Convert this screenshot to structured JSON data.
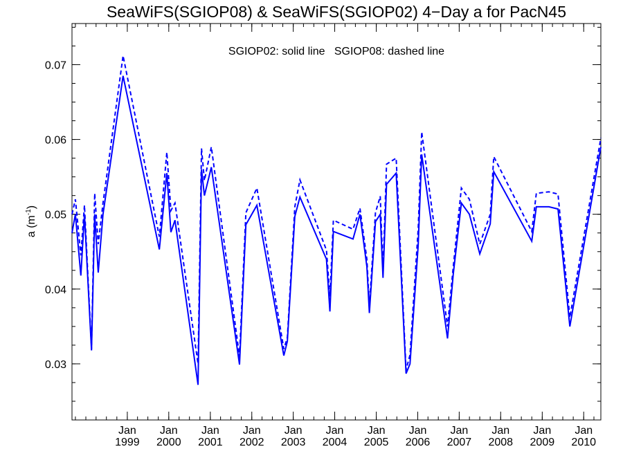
{
  "chart_data": {
    "type": "line",
    "title": "SeaWiFS(SGIOP08) & SeaWiFS(SGIOP02) 4−Day a for PacN45",
    "annotation": "SGIOP02: solid line   SGIOP08: dashed line",
    "ylabel": "a (m",
    "ylabel_unit_sup": "-1",
    "ylabel_close": ")",
    "xlim": [
      "1997-09-01",
      "2010-06-01"
    ],
    "ylim": [
      0.0225,
      0.0755
    ],
    "yticks": [
      0.03,
      0.04,
      0.05,
      0.06,
      0.07
    ],
    "ytick_labels": [
      "0.03",
      "0.04",
      "0.05",
      "0.06",
      "0.07"
    ],
    "xticks": [
      {
        "date": "1999-01-01",
        "month": "Jan",
        "year": "1999"
      },
      {
        "date": "2000-01-01",
        "month": "Jan",
        "year": "2000"
      },
      {
        "date": "2001-01-01",
        "month": "Jan",
        "year": "2001"
      },
      {
        "date": "2002-01-01",
        "month": "Jan",
        "year": "2002"
      },
      {
        "date": "2003-01-01",
        "month": "Jan",
        "year": "2003"
      },
      {
        "date": "2004-01-01",
        "month": "Jan",
        "year": "2004"
      },
      {
        "date": "2005-01-01",
        "month": "Jan",
        "year": "2005"
      },
      {
        "date": "2006-01-01",
        "month": "Jan",
        "year": "2006"
      },
      {
        "date": "2007-01-01",
        "month": "Jan",
        "year": "2007"
      },
      {
        "date": "2008-01-01",
        "month": "Jan",
        "year": "2008"
      },
      {
        "date": "2009-01-01",
        "month": "Jan",
        "year": "2009"
      },
      {
        "date": "2010-01-01",
        "month": "Jan",
        "year": "2010"
      }
    ],
    "line_color": "#0000ff",
    "series": [
      {
        "name": "SGIOP02",
        "style": "solid",
        "points": [
          [
            "1997-09-01",
            0.0475
          ],
          [
            "1997-10-01",
            0.05
          ],
          [
            "1997-11-18",
            0.0418
          ],
          [
            "1997-12-20",
            0.05
          ],
          [
            "1998-02-20",
            0.0318
          ],
          [
            "1998-03-20",
            0.05
          ],
          [
            "1998-04-20",
            0.0422
          ],
          [
            "1998-06-01",
            0.05
          ],
          [
            "1998-11-25",
            0.0685
          ],
          [
            "1999-10-10",
            0.0453
          ],
          [
            "1999-12-15",
            0.0555
          ],
          [
            "2000-01-20",
            0.0476
          ],
          [
            "2000-02-25",
            0.0492
          ],
          [
            "2000-09-15",
            0.0272
          ],
          [
            "2000-10-15",
            0.056
          ],
          [
            "2000-11-10",
            0.0525
          ],
          [
            "2001-01-10",
            0.0563
          ],
          [
            "2001-09-15",
            0.0299
          ],
          [
            "2001-11-10",
            0.0486
          ],
          [
            "2002-02-15",
            0.0512
          ],
          [
            "2002-10-10",
            0.0311
          ],
          [
            "2002-11-10",
            0.033
          ],
          [
            "2003-01-15",
            0.0497
          ],
          [
            "2003-03-01",
            0.0523
          ],
          [
            "2003-10-20",
            0.044
          ],
          [
            "2003-11-20",
            0.037
          ],
          [
            "2003-12-20",
            0.0477
          ],
          [
            "2004-06-10",
            0.0467
          ],
          [
            "2004-08-10",
            0.05
          ],
          [
            "2004-10-10",
            0.043
          ],
          [
            "2004-11-01",
            0.0368
          ],
          [
            "2004-12-25",
            0.049
          ],
          [
            "2005-02-05",
            0.05
          ],
          [
            "2005-03-01",
            0.0415
          ],
          [
            "2005-04-01",
            0.054
          ],
          [
            "2005-06-25",
            0.0555
          ],
          [
            "2005-09-20",
            0.0287
          ],
          [
            "2005-10-25",
            0.03
          ],
          [
            "2006-01-05",
            0.0458
          ],
          [
            "2006-02-05",
            0.058
          ],
          [
            "2006-09-20",
            0.0334
          ],
          [
            "2006-11-10",
            0.042
          ],
          [
            "2007-01-20",
            0.0515
          ],
          [
            "2007-04-01",
            0.05
          ],
          [
            "2007-07-01",
            0.0447
          ],
          [
            "2007-10-01",
            0.0487
          ],
          [
            "2007-11-01",
            0.0557
          ],
          [
            "2008-10-01",
            0.0464
          ],
          [
            "2008-11-10",
            0.051
          ],
          [
            "2009-03-01",
            0.051
          ],
          [
            "2009-05-20",
            0.0507
          ],
          [
            "2009-09-01",
            0.035
          ],
          [
            "2010-06-01",
            0.059
          ]
        ]
      },
      {
        "name": "SGIOP08",
        "style": "dashed",
        "points": [
          [
            "1997-09-01",
            0.05
          ],
          [
            "1997-10-01",
            0.052
          ],
          [
            "1997-11-18",
            0.0445
          ],
          [
            "1997-12-20",
            0.0512
          ],
          [
            "1998-02-20",
            0.032
          ],
          [
            "1998-03-20",
            0.0528
          ],
          [
            "1998-04-20",
            0.046
          ],
          [
            "1998-06-01",
            0.0515
          ],
          [
            "1998-11-25",
            0.0712
          ],
          [
            "1999-10-10",
            0.047
          ],
          [
            "1999-12-15",
            0.0583
          ],
          [
            "2000-01-20",
            0.0505
          ],
          [
            "2000-02-25",
            0.0515
          ],
          [
            "2000-09-15",
            0.03
          ],
          [
            "2000-10-15",
            0.0588
          ],
          [
            "2000-11-10",
            0.0545
          ],
          [
            "2001-01-10",
            0.059
          ],
          [
            "2001-09-15",
            0.031
          ],
          [
            "2001-11-10",
            0.0502
          ],
          [
            "2002-02-15",
            0.0535
          ],
          [
            "2002-10-10",
            0.032
          ],
          [
            "2002-11-10",
            0.0335
          ],
          [
            "2003-01-15",
            0.051
          ],
          [
            "2003-03-01",
            0.0546
          ],
          [
            "2003-10-20",
            0.0452
          ],
          [
            "2003-11-20",
            0.039
          ],
          [
            "2003-12-20",
            0.0492
          ],
          [
            "2004-06-10",
            0.048
          ],
          [
            "2004-08-10",
            0.0508
          ],
          [
            "2004-10-10",
            0.044
          ],
          [
            "2004-11-01",
            0.0378
          ],
          [
            "2004-12-25",
            0.0502
          ],
          [
            "2005-02-05",
            0.0524
          ],
          [
            "2005-03-01",
            0.0425
          ],
          [
            "2005-04-01",
            0.0567
          ],
          [
            "2005-06-25",
            0.0575
          ],
          [
            "2005-09-20",
            0.0292
          ],
          [
            "2005-10-25",
            0.0312
          ],
          [
            "2006-01-05",
            0.048
          ],
          [
            "2006-02-05",
            0.061
          ],
          [
            "2006-09-20",
            0.035
          ],
          [
            "2006-11-10",
            0.043
          ],
          [
            "2007-01-20",
            0.0535
          ],
          [
            "2007-04-01",
            0.052
          ],
          [
            "2007-07-01",
            0.046
          ],
          [
            "2007-10-01",
            0.05
          ],
          [
            "2007-11-01",
            0.0577
          ],
          [
            "2008-10-01",
            0.0477
          ],
          [
            "2008-11-10",
            0.0528
          ],
          [
            "2009-03-01",
            0.053
          ],
          [
            "2009-05-20",
            0.0527
          ],
          [
            "2009-09-01",
            0.0362
          ],
          [
            "2010-06-01",
            0.0602
          ]
        ]
      }
    ]
  }
}
